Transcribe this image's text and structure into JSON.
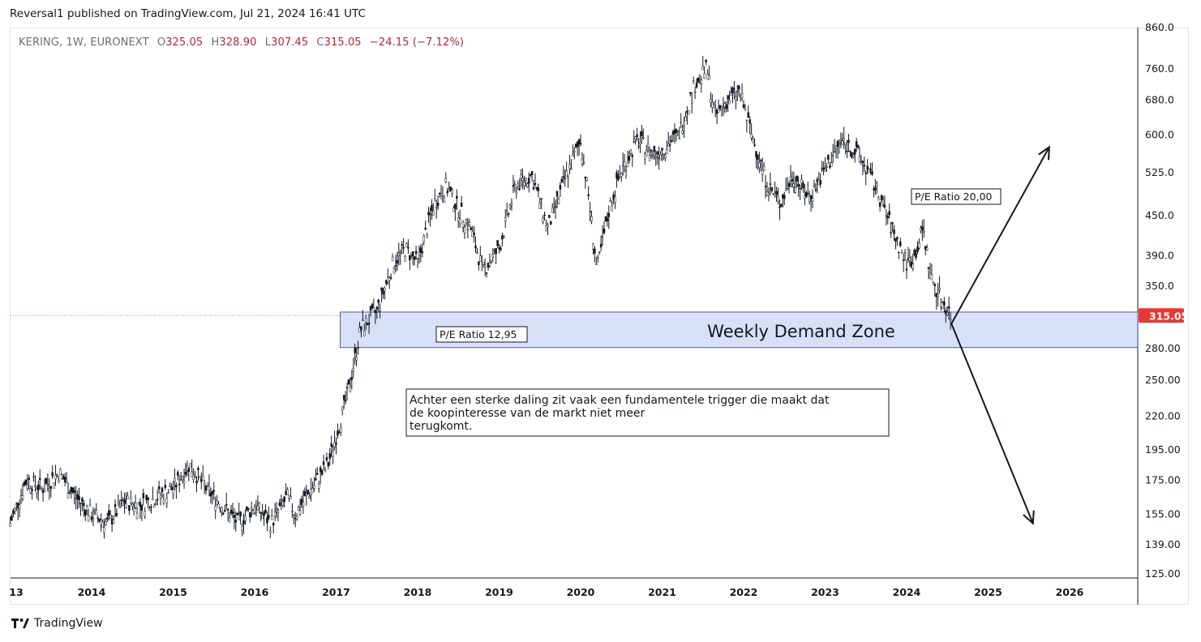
{
  "header": {
    "published": "Reversal1 published on TradingView.com, Jul 21, 2024 16:41 UTC"
  },
  "legend": {
    "symbol": "KERING, 1W, EURONEXT",
    "open_label": "O",
    "open": "325.05",
    "high_label": "H",
    "high": "328.90",
    "low_label": "L",
    "low": "307.45",
    "close_label": "C",
    "close": "315.05",
    "change": "−24.15 (−7.12%)"
  },
  "footer": {
    "brand": "TradingView"
  },
  "colors": {
    "up": "#26a69a",
    "down": "#ef5350",
    "candle": "#131722",
    "zone": "#d8e0f7",
    "zone_border": "#2b3a8c",
    "price_tag": "#e53935"
  },
  "annotations": {
    "zone_label": "Weekly Demand Zone",
    "pe_low": "P/E Ratio 12,95",
    "pe_high": "P/E Ratio 20,00",
    "note_lines": [
      "Achter een sterke daling zit vaak een fundamentele trigger die maakt dat",
      "de koopinteresse van de markt niet meer",
      "terugkomt."
    ]
  },
  "chart_data": {
    "type": "line",
    "title": "KERING, 1W, EURONEXT",
    "xlabel": "",
    "ylabel": "",
    "y_scale": "log",
    "ylim": [
      125,
      860
    ],
    "y_ticks": [
      "860.0",
      "760.0",
      "680.0",
      "600.0",
      "525.0",
      "450.0",
      "390.0",
      "350.0",
      "280.00",
      "250.00",
      "220.00",
      "195.00",
      "175.00",
      "155.00",
      "139.00",
      "125.00"
    ],
    "y_tick_values": [
      860,
      760,
      680,
      600,
      525,
      450,
      390,
      350,
      280,
      250,
      220,
      195,
      175,
      155,
      139,
      125
    ],
    "x_ticks": [
      "13",
      "2014",
      "2015",
      "2016",
      "2017",
      "2018",
      "2019",
      "2020",
      "2021",
      "2022",
      "2023",
      "2024",
      "2025",
      "2026"
    ],
    "x_tick_years": [
      2013.0,
      2014.0,
      2015.0,
      2016.0,
      2017.0,
      2018.0,
      2019.0,
      2020.0,
      2021.0,
      2022.0,
      2023.0,
      2024.0,
      2025.0,
      2026.0
    ],
    "last_price": "315.05",
    "series": [
      {
        "values_note": "approximate weekly closes read from chart",
        "x": [
          2013.0,
          2013.2,
          2013.4,
          2013.6,
          2013.8,
          2014.0,
          2014.2,
          2014.4,
          2014.6,
          2014.8,
          2015.0,
          2015.2,
          2015.4,
          2015.6,
          2015.8,
          2016.0,
          2016.2,
          2016.4,
          2016.5,
          2016.7,
          2016.9,
          2017.0,
          2017.15,
          2017.3,
          2017.5,
          2017.7,
          2017.85,
          2018.0,
          2018.2,
          2018.35,
          2018.5,
          2018.65,
          2018.8,
          2019.0,
          2019.2,
          2019.4,
          2019.6,
          2019.8,
          2020.0,
          2020.1,
          2020.2,
          2020.35,
          2020.5,
          2020.7,
          2020.9,
          2021.0,
          2021.2,
          2021.4,
          2021.55,
          2021.65,
          2021.8,
          2021.95,
          2022.1,
          2022.3,
          2022.45,
          2022.6,
          2022.8,
          2023.0,
          2023.2,
          2023.4,
          2023.55,
          2023.7,
          2023.85,
          2024.0,
          2024.1,
          2024.2,
          2024.3,
          2024.45,
          2024.55
        ],
        "y": [
          150,
          175,
          170,
          180,
          165,
          155,
          150,
          162,
          160,
          165,
          170,
          185,
          170,
          160,
          150,
          160,
          150,
          165,
          155,
          170,
          185,
          205,
          240,
          300,
          320,
          380,
          400,
          380,
          470,
          500,
          460,
          430,
          370,
          400,
          500,
          520,
          430,
          510,
          590,
          480,
          370,
          460,
          530,
          590,
          560,
          570,
          600,
          720,
          760,
          640,
          680,
          700,
          600,
          500,
          470,
          520,
          480,
          530,
          590,
          560,
          520,
          470,
          420,
          380,
          390,
          430,
          360,
          330,
          315
        ]
      }
    ],
    "demand_zone": {
      "y_low": 281,
      "y_high": 319
    },
    "projection_up": {
      "x": [
        2024.55,
        2025.75
      ],
      "y": [
        306,
        575
      ]
    },
    "projection_down": {
      "x": [
        2024.55,
        2025.55
      ],
      "y": [
        306,
        150
      ]
    }
  }
}
